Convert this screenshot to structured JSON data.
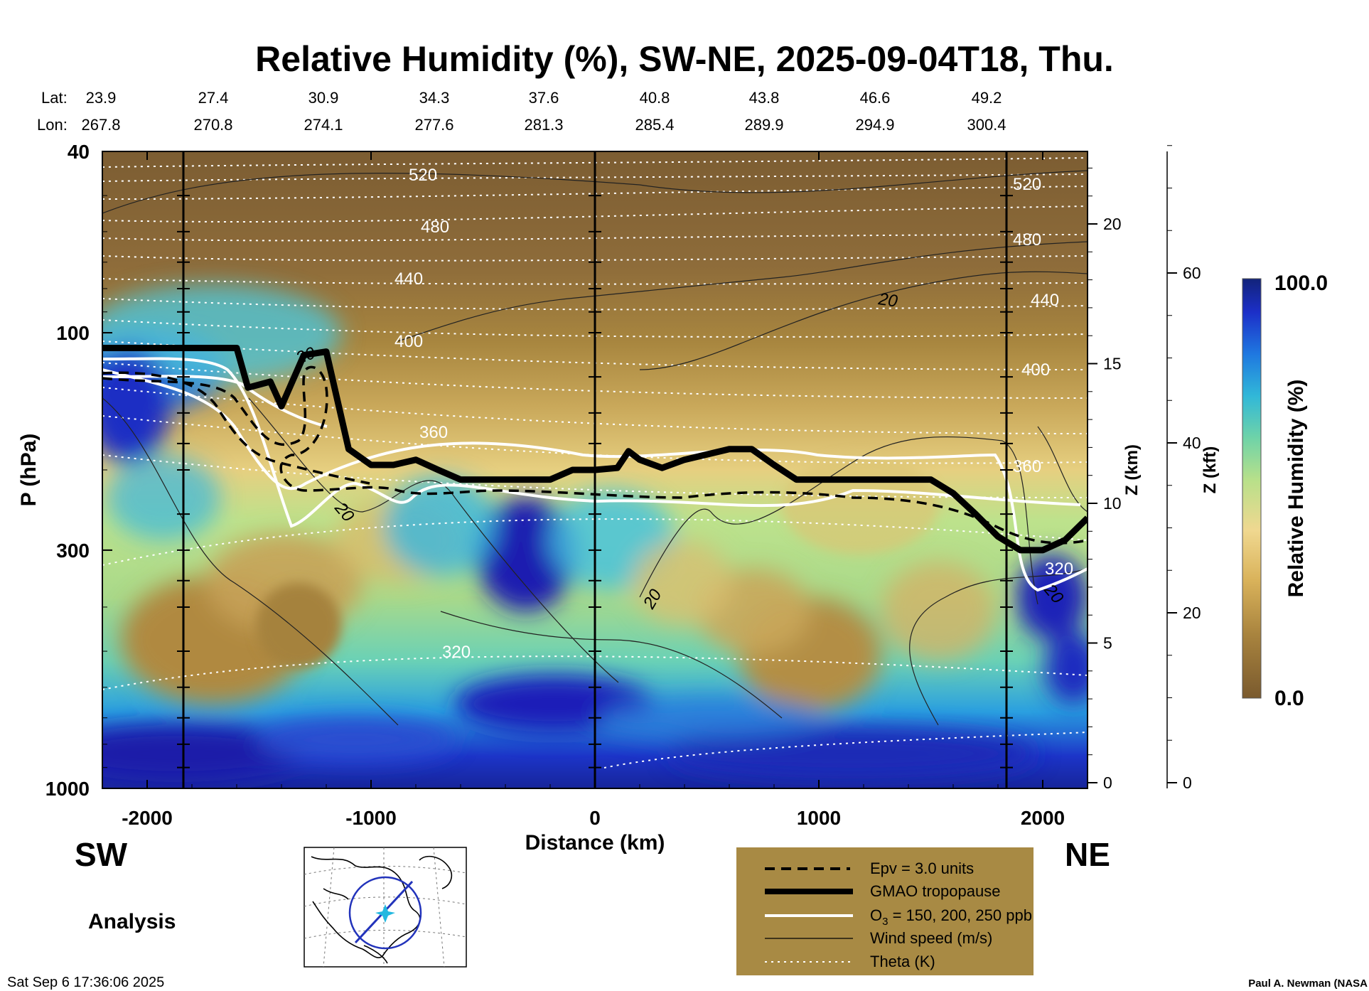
{
  "chart_data": {
    "type": "contour-cross-section",
    "title": "Relative Humidity (%), SW-NE, 2025-09-04T18, Thu.",
    "xlabel": "Distance (km)",
    "ylabel": "P (hPa)",
    "ylabel_z_km": "Z (km)",
    "ylabel_z_kft": "Z (kft)",
    "colorbar_label": "Relative Humidity (%)",
    "colorbar_max": "100.0",
    "colorbar_min": "0.0",
    "xlim": [
      -2200,
      2200
    ],
    "ylim_hpa": [
      1000,
      40
    ],
    "x_ticks": [
      {
        "v": -2000,
        "label": "-2000"
      },
      {
        "v": -1000,
        "label": "-1000"
      },
      {
        "v": 0,
        "label": "0"
      },
      {
        "v": 1000,
        "label": "1000"
      },
      {
        "v": 2000,
        "label": "2000"
      }
    ],
    "p_ticks": [
      {
        "v": 40,
        "label": "40"
      },
      {
        "v": 100,
        "label": "100"
      },
      {
        "v": 300,
        "label": "300"
      },
      {
        "v": 1000,
        "label": "1000"
      }
    ],
    "z_km_ticks": [
      "0",
      "5",
      "10",
      "15",
      "20"
    ],
    "z_kft_ticks": [
      "0",
      "20",
      "40",
      "60"
    ],
    "lat_label": "Lat:",
    "lon_label": "Lon:",
    "lat": [
      "23.9",
      "27.4",
      "30.9",
      "34.3",
      "37.6",
      "40.8",
      "43.8",
      "46.6",
      "49.2"
    ],
    "lon": [
      "267.8",
      "270.8",
      "274.1",
      "277.6",
      "281.3",
      "285.4",
      "289.9",
      "294.9",
      "300.4"
    ],
    "theta_labels": [
      "520",
      "480",
      "440",
      "400",
      "360",
      "320",
      "520",
      "480",
      "440",
      "400",
      "360",
      "320"
    ],
    "wind_labels": [
      "20",
      "20",
      "20",
      "20",
      "20"
    ],
    "tropopause_km_x": [
      -2200,
      -1600,
      -1550,
      -1450,
      -1400,
      -1300,
      -1200,
      -1100,
      -1000,
      -900,
      -800,
      -700,
      -600,
      -500,
      -400,
      -300,
      -200,
      -100,
      0,
      100,
      150,
      200,
      300,
      400,
      500,
      600,
      700,
      800,
      900,
      1000,
      1100,
      1200,
      1300,
      1400,
      1500,
      1600,
      1700,
      1800,
      1900,
      2000,
      2100,
      2200
    ],
    "tropopause_hpa": [
      108,
      108,
      132,
      128,
      145,
      112,
      110,
      180,
      195,
      195,
      190,
      200,
      210,
      210,
      210,
      210,
      210,
      200,
      200,
      198,
      182,
      190,
      198,
      190,
      185,
      180,
      180,
      195,
      210,
      210,
      210,
      210,
      210,
      210,
      210,
      225,
      250,
      280,
      300,
      300,
      285,
      255
    ]
  },
  "corner": {
    "left_label": "SW",
    "right_label": "NE",
    "analysis_label": "Analysis",
    "timestamp": "Sat Sep  6 17:36:06 2025",
    "credit": "Paul A. Newman (NASA"
  },
  "legend": {
    "items": [
      {
        "label": "Epv = 3.0 units",
        "style": "dashed"
      },
      {
        "label": "GMAO tropopause",
        "style": "thick"
      },
      {
        "label": "O",
        "sub": "3",
        "suffix": " = 150, 200, 250 ppb",
        "style": "white"
      },
      {
        "label": "Wind speed (m/s)",
        "style": "thin"
      },
      {
        "label": "Theta (K)",
        "style": "dotted"
      }
    ]
  },
  "colors": {
    "dry": "#8a6a3a",
    "moist_mid": "#8ad68a",
    "wet": "#1a1aa8",
    "legend_bg": "#a88a44"
  }
}
